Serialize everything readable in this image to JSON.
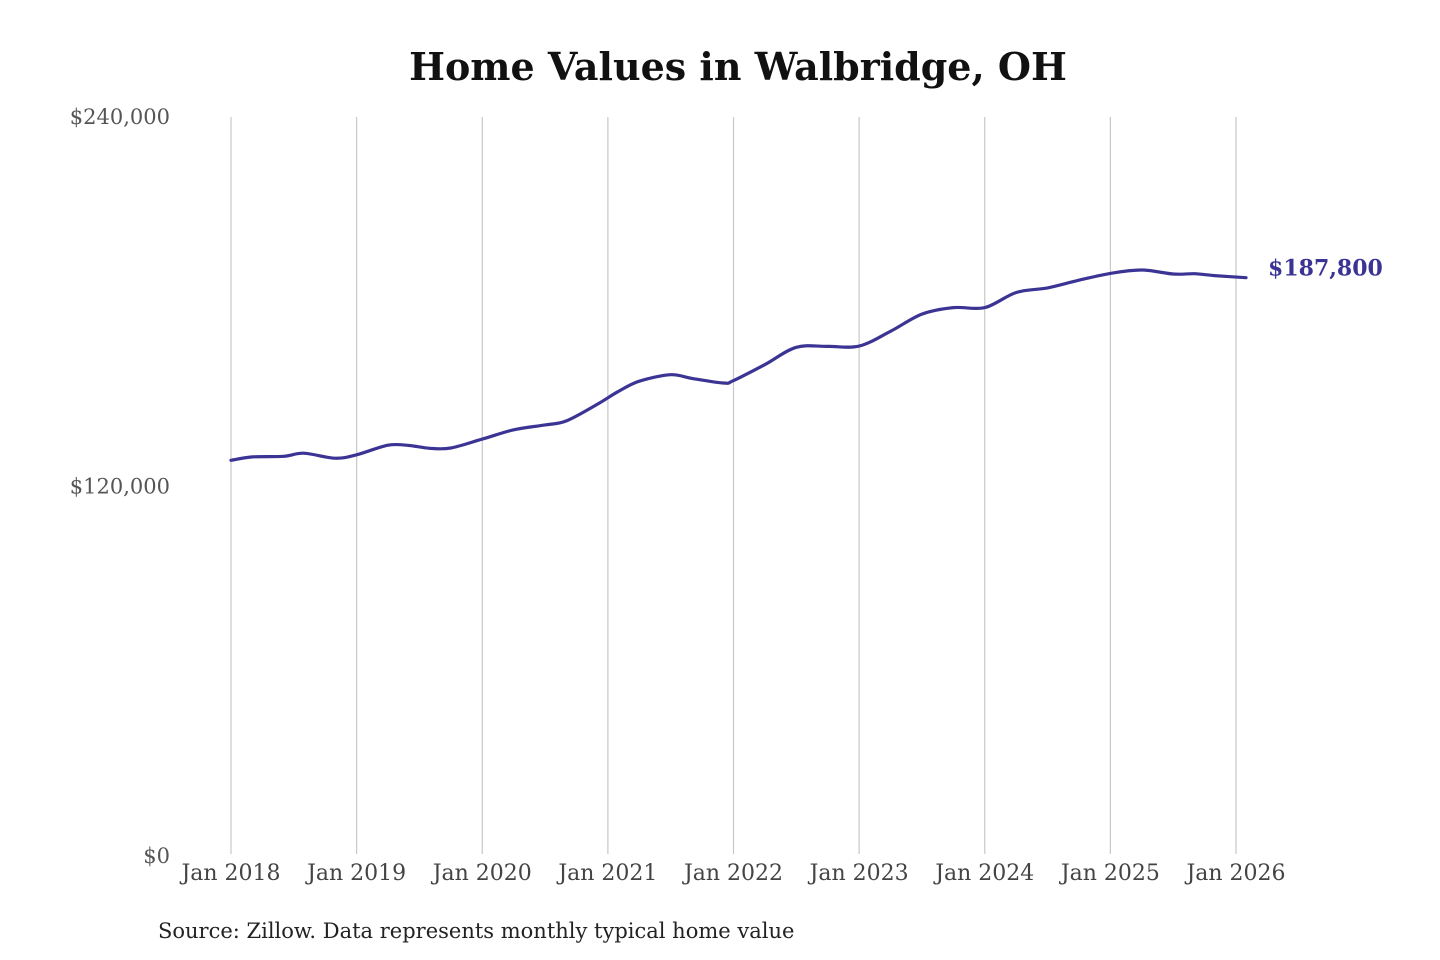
{
  "chart_data": {
    "type": "line",
    "title": "Home Values in Walbridge, OH",
    "xlabel": "",
    "ylabel": "",
    "ylim": [
      0,
      240000
    ],
    "yticks": [
      {
        "value": 0,
        "label": "$0"
      },
      {
        "value": 120000,
        "label": "$120,000"
      },
      {
        "value": 240000,
        "label": "$240,000"
      }
    ],
    "xlim": [
      2018.0,
      2026.0
    ],
    "xticks": [
      {
        "value": 2018,
        "label": "Jan 2018"
      },
      {
        "value": 2019,
        "label": "Jan 2019"
      },
      {
        "value": 2020,
        "label": "Jan 2020"
      },
      {
        "value": 2021,
        "label": "Jan 2021"
      },
      {
        "value": 2022,
        "label": "Jan 2022"
      },
      {
        "value": 2023,
        "label": "Jan 2023"
      },
      {
        "value": 2024,
        "label": "Jan 2024"
      },
      {
        "value": 2025,
        "label": "Jan 2025"
      },
      {
        "value": 2026,
        "label": "Jan 2026"
      }
    ],
    "grid": "vertical",
    "series": [
      {
        "color": "#3b3494",
        "points": [
          [
            2018.0,
            128500
          ],
          [
            2018.17,
            129600
          ],
          [
            2018.42,
            129800
          ],
          [
            2018.58,
            130800
          ],
          [
            2018.83,
            129200
          ],
          [
            2019.0,
            130300
          ],
          [
            2019.25,
            133400
          ],
          [
            2019.42,
            133300
          ],
          [
            2019.58,
            132400
          ],
          [
            2019.75,
            132500
          ],
          [
            2020.0,
            135400
          ],
          [
            2020.25,
            138400
          ],
          [
            2020.5,
            140000
          ],
          [
            2020.67,
            141300
          ],
          [
            2020.92,
            146800
          ],
          [
            2021.08,
            150800
          ],
          [
            2021.25,
            154200
          ],
          [
            2021.5,
            156300
          ],
          [
            2021.67,
            155100
          ],
          [
            2021.92,
            153600
          ],
          [
            2022.0,
            154400
          ],
          [
            2022.25,
            159600
          ],
          [
            2022.5,
            165200
          ],
          [
            2022.75,
            165500
          ],
          [
            2023.0,
            165600
          ],
          [
            2023.25,
            170400
          ],
          [
            2023.5,
            176000
          ],
          [
            2023.75,
            178100
          ],
          [
            2024.0,
            178100
          ],
          [
            2024.25,
            183000
          ],
          [
            2024.5,
            184500
          ],
          [
            2024.75,
            187000
          ],
          [
            2025.0,
            189200
          ],
          [
            2025.25,
            190300
          ],
          [
            2025.5,
            189000
          ],
          [
            2025.67,
            189100
          ],
          [
            2025.83,
            188500
          ],
          [
            2026.08,
            187800
          ]
        ],
        "end_label": "$187,800"
      }
    ],
    "source": "Source: Zillow. Data represents monthly typical home value"
  }
}
